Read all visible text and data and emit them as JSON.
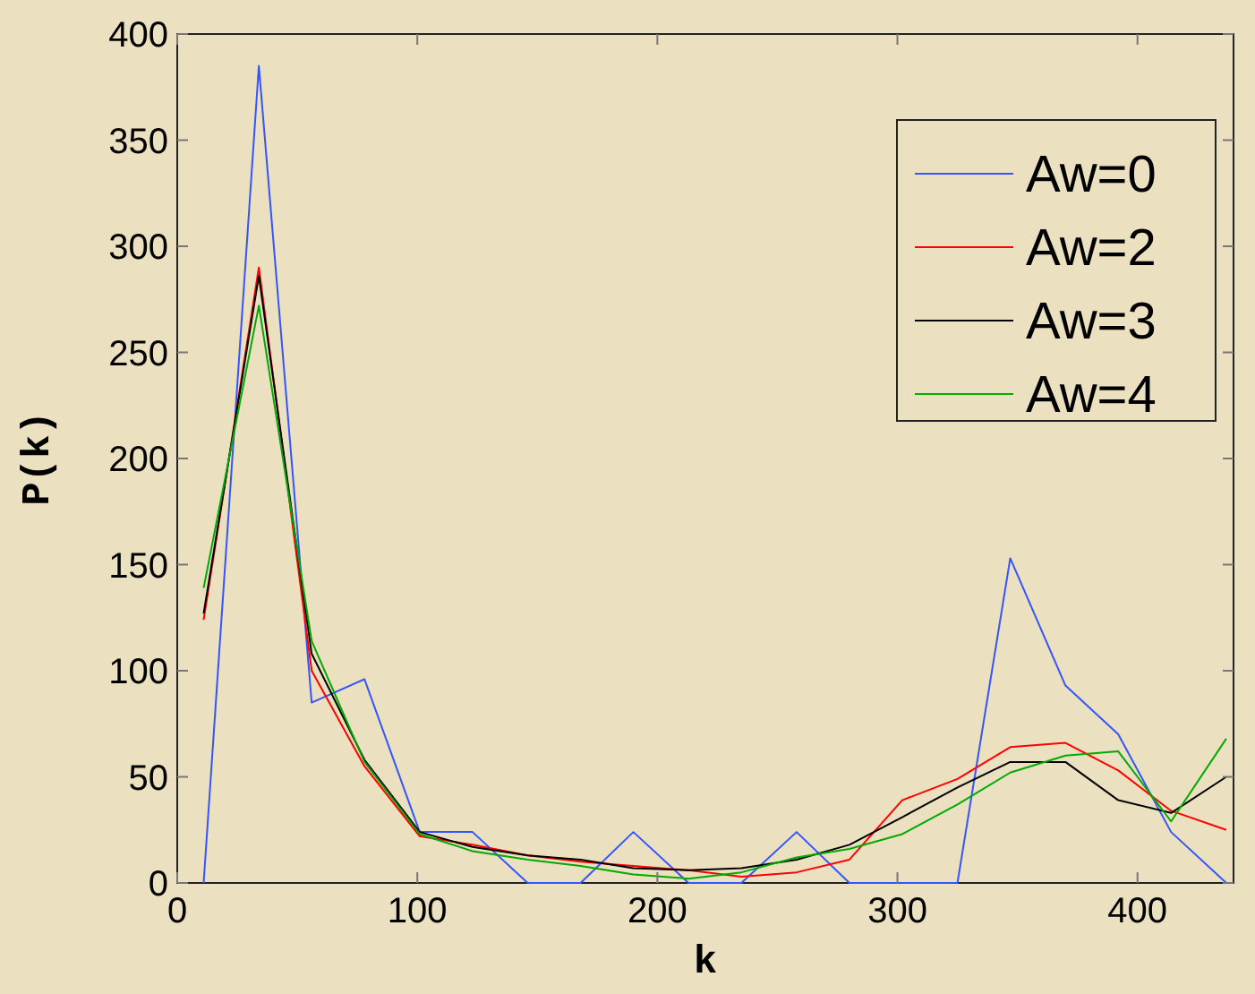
{
  "chart_data": {
    "type": "line",
    "xlabel": "k",
    "ylabel": "P(k)",
    "x": [
      11,
      34,
      56,
      78,
      101,
      123,
      146,
      168,
      190,
      213,
      235,
      258,
      280,
      302,
      325,
      347,
      370,
      392,
      414,
      437
    ],
    "series": [
      {
        "name": "Aw=0",
        "color": "#3355ff",
        "values": [
          0,
          385,
          85,
          96,
          24,
          24,
          0,
          0,
          24,
          0,
          0,
          24,
          0,
          0,
          0,
          153,
          93,
          70,
          24,
          0
        ]
      },
      {
        "name": "Aw=2",
        "color": "#ff0000",
        "values": [
          124,
          290,
          100,
          55,
          22,
          18,
          13,
          10,
          8,
          6,
          3,
          5,
          11,
          39,
          49,
          64,
          66,
          53,
          34,
          25
        ]
      },
      {
        "name": "Aw=3",
        "color": "#000000",
        "values": [
          127,
          286,
          108,
          58,
          24,
          17,
          13,
          11,
          7,
          6,
          7,
          11,
          18,
          31,
          45,
          57,
          57,
          39,
          33,
          50
        ]
      },
      {
        "name": "Aw=4",
        "color": "#00aa00",
        "values": [
          139,
          272,
          114,
          57,
          23,
          15,
          11,
          8,
          4,
          2,
          5,
          12,
          16,
          23,
          37,
          52,
          60,
          62,
          29,
          68
        ]
      }
    ],
    "xlim": [
      0,
      440
    ],
    "xticks": [
      0,
      100,
      200,
      300,
      400
    ],
    "ylim": [
      0,
      400
    ],
    "yticks": [
      0,
      50,
      100,
      150,
      200,
      250,
      300,
      350,
      400
    ],
    "legend": "top right",
    "grid": false,
    "marker": "none",
    "line_style": "solid"
  }
}
